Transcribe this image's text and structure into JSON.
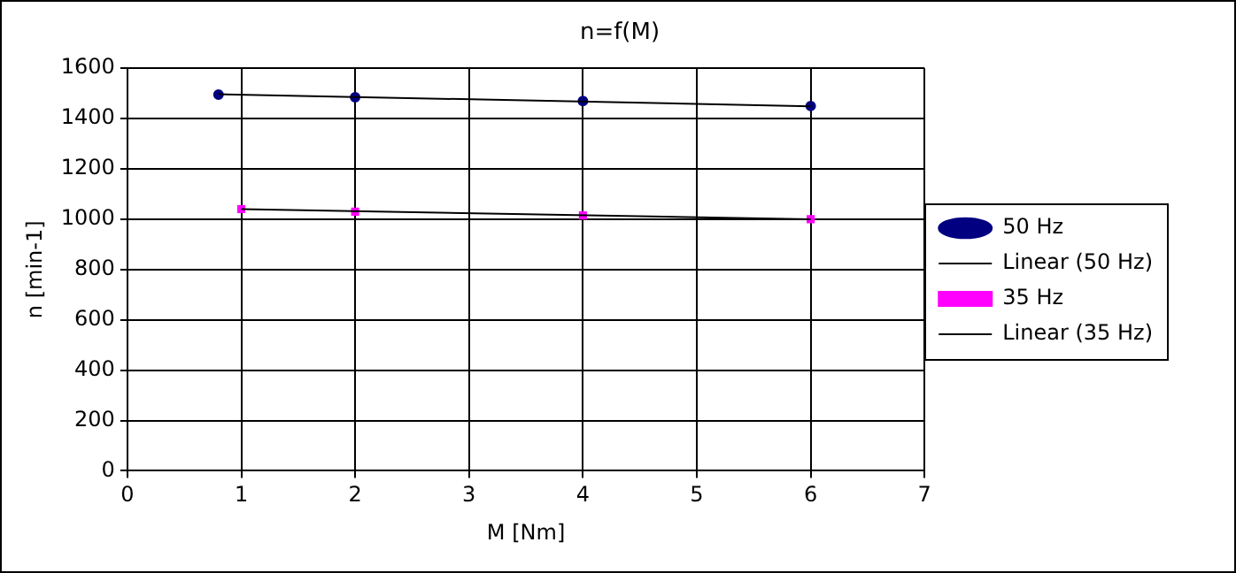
{
  "chart_data": {
    "type": "scatter",
    "title": "n=f(M)",
    "xlabel": "M [Nm]",
    "ylabel": "n [min-1]",
    "series": [
      {
        "name": "50 Hz",
        "color": "#000080",
        "marker": "circle",
        "x": [
          0.8,
          2,
          4,
          6
        ],
        "values": [
          1495,
          1485,
          1470,
          1450
        ]
      },
      {
        "name": "Linear (50 Hz)",
        "type": "line",
        "color": "#000000",
        "marker": "none",
        "x": [
          0.8,
          6
        ],
        "values": [
          1497,
          1449
        ]
      },
      {
        "name": "35 Hz",
        "color": "#ff00ff",
        "marker": "square",
        "x": [
          1,
          2,
          4,
          6
        ],
        "values": [
          1040,
          1030,
          1015,
          1000
        ]
      },
      {
        "name": "Linear (35 Hz)",
        "type": "line",
        "color": "#000000",
        "marker": "none",
        "x": [
          1,
          6
        ],
        "values": [
          1040,
          1000
        ]
      }
    ],
    "xlim": [
      0,
      7
    ],
    "xticks": [
      0,
      1,
      2,
      3,
      4,
      5,
      6,
      7
    ],
    "ylim": [
      0,
      1600
    ],
    "yticks": [
      0,
      200,
      400,
      600,
      800,
      1000,
      1200,
      1400,
      1600
    ],
    "grid": true,
    "legend": "right"
  }
}
